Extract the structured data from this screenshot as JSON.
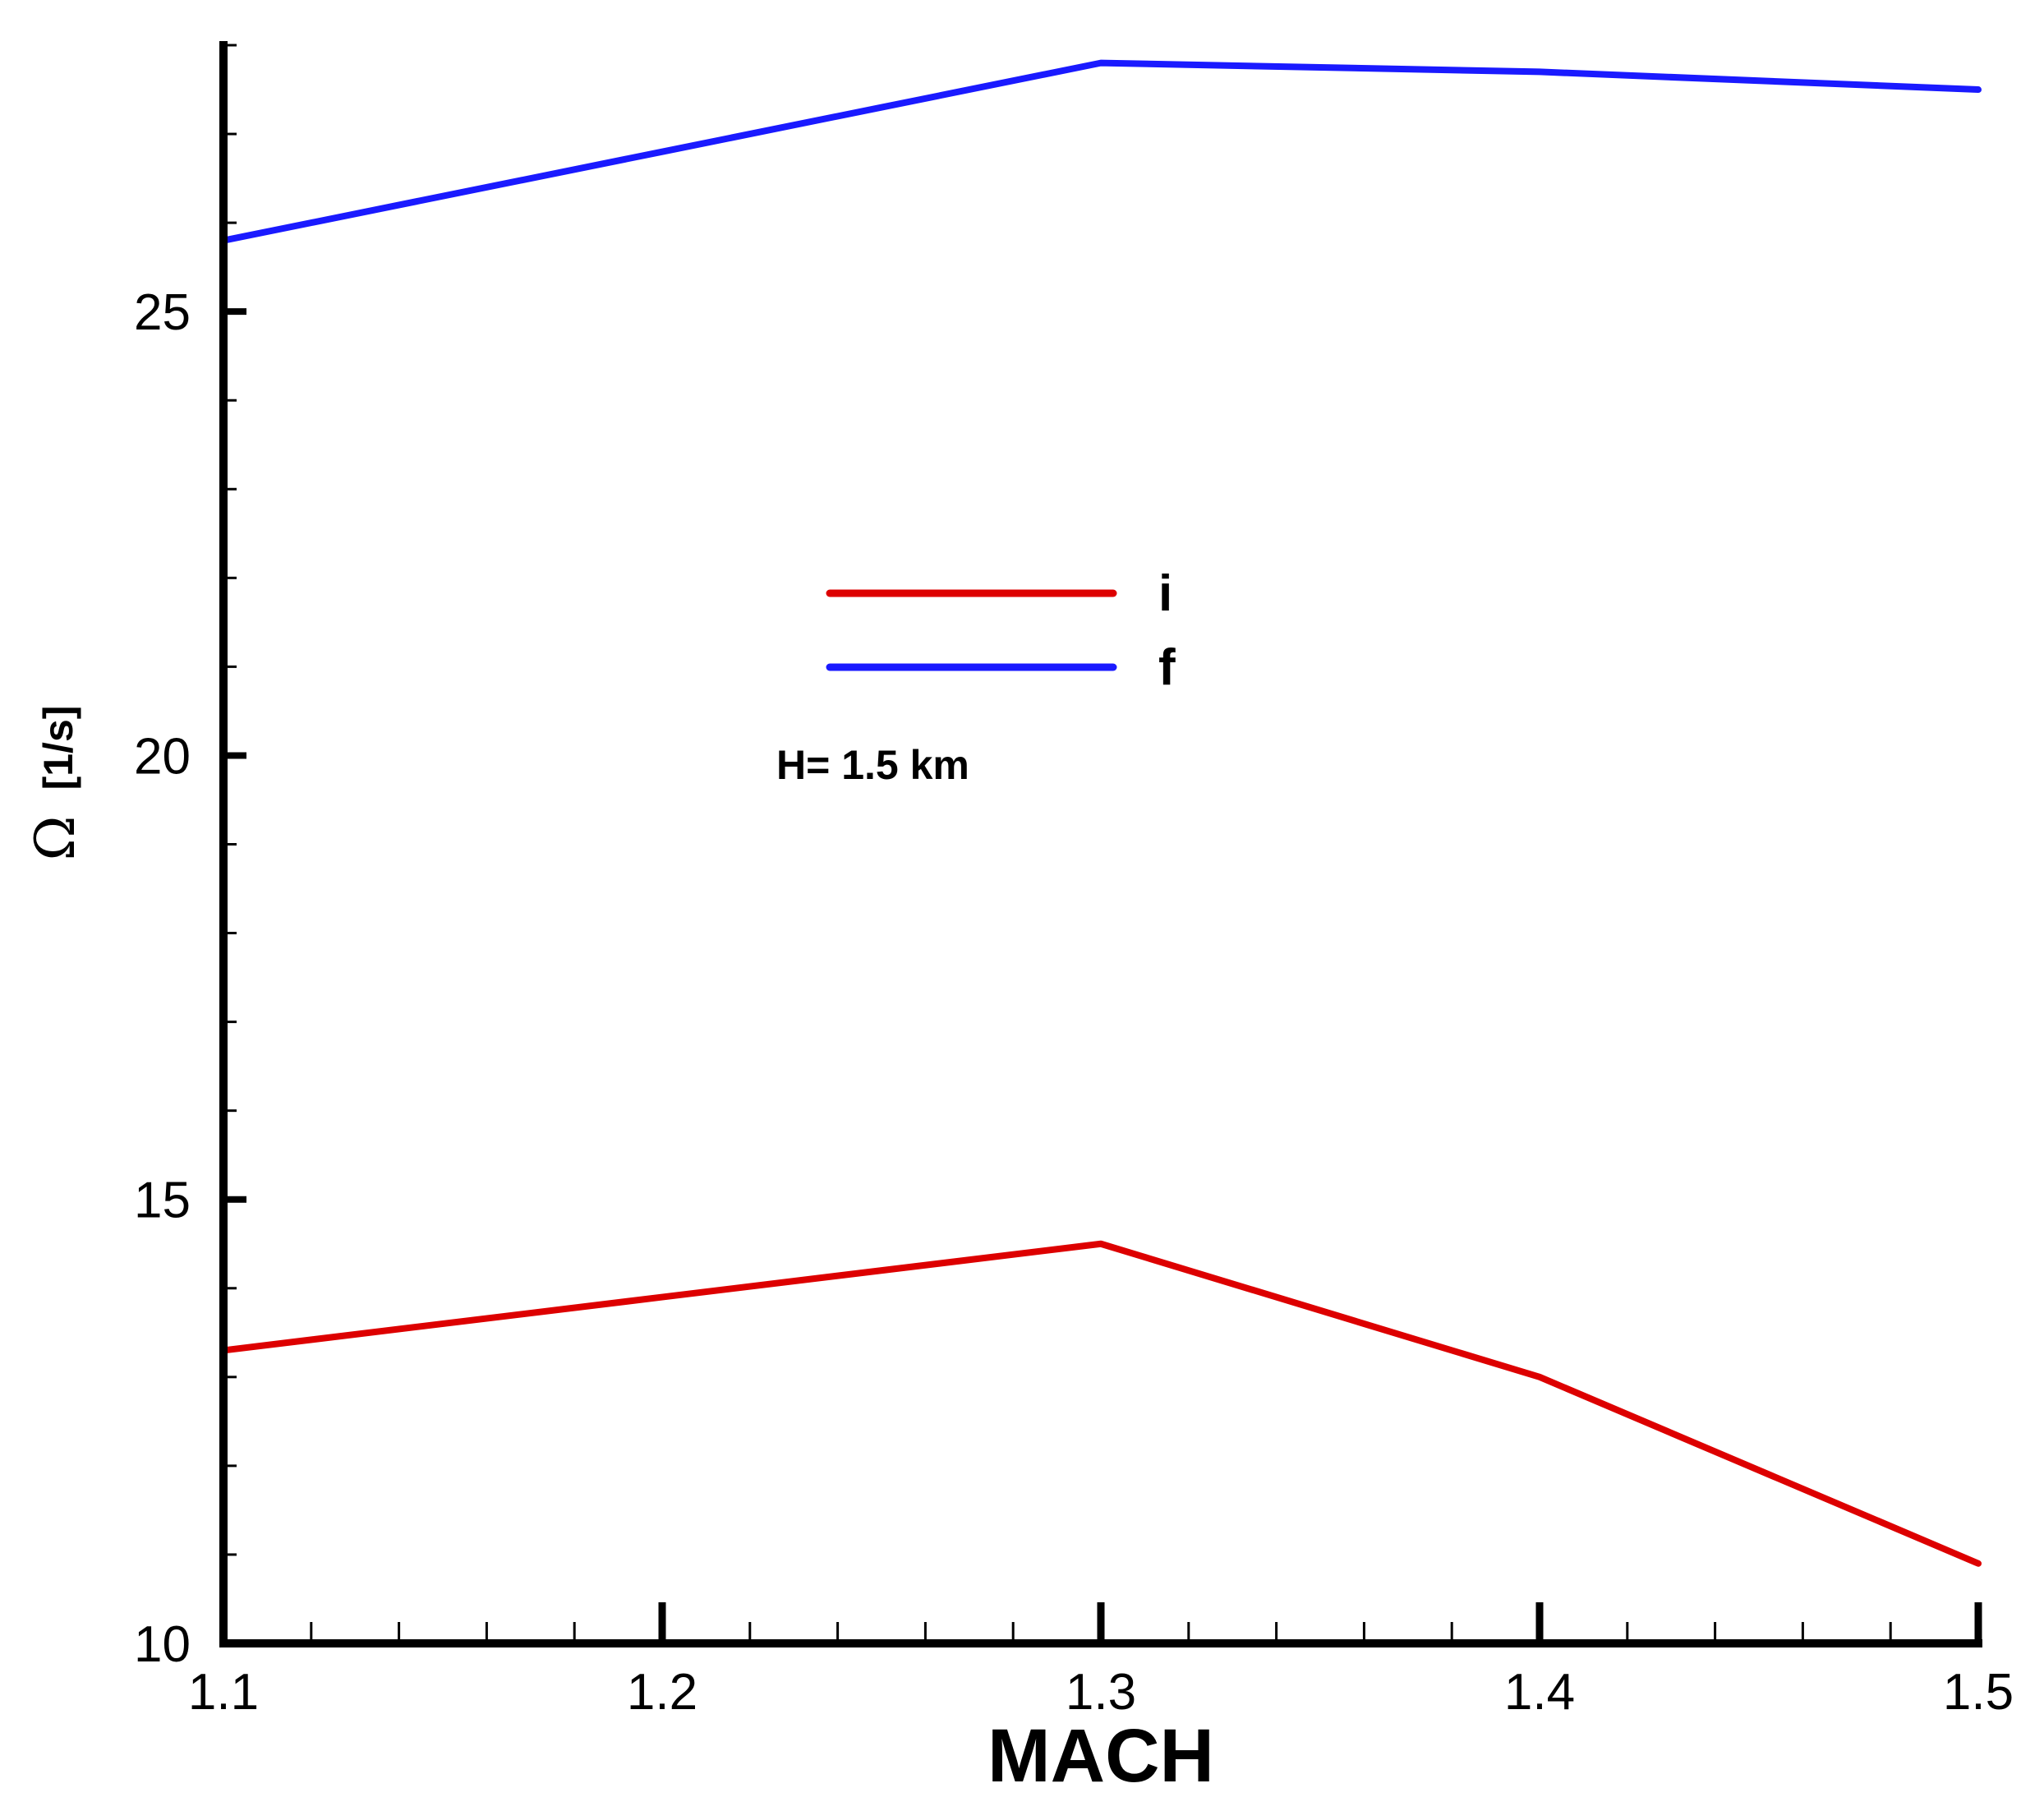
{
  "chart_data": {
    "type": "line",
    "x": [
      1.1,
      1.2,
      1.3,
      1.4,
      1.5
    ],
    "series": [
      {
        "name": "i",
        "color": "#dd0000",
        "values": [
          13.3,
          13.9,
          14.5,
          13.0,
          10.9
        ]
      },
      {
        "name": "f",
        "color": "#1a1aff",
        "values": [
          25.8,
          26.8,
          27.8,
          27.7,
          27.5
        ]
      }
    ],
    "xlabel": "MACH",
    "ylabel_symbol": "Ω",
    "ylabel_unit": "[1/s]",
    "xlim": [
      1.1,
      1.5
    ],
    "ylim": [
      10,
      28
    ],
    "x_ticks": [
      "1.1",
      "1.2",
      "1.3",
      "1.4",
      "1.5"
    ],
    "y_ticks": [
      "10",
      "15",
      "20",
      "25"
    ],
    "annotation": "H= 1.5 km",
    "legend_placement": "center",
    "grid": false
  }
}
